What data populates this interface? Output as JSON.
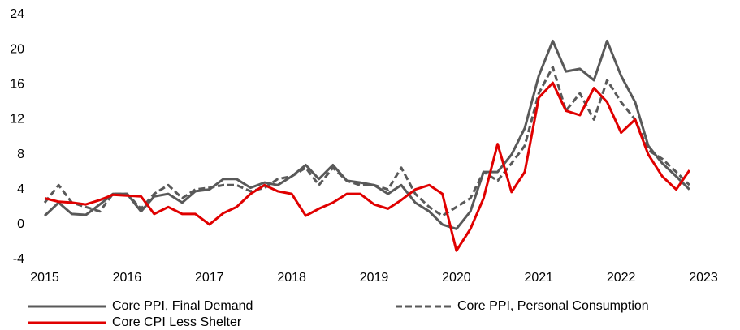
{
  "chart_data": {
    "type": "line",
    "x": [
      2015,
      2015.17,
      2015.33,
      2015.5,
      2015.67,
      2015.83,
      2016,
      2016.17,
      2016.33,
      2016.5,
      2016.67,
      2016.83,
      2017,
      2017.17,
      2017.33,
      2017.5,
      2017.67,
      2017.83,
      2018,
      2018.17,
      2018.33,
      2018.5,
      2018.67,
      2018.83,
      2019,
      2019.17,
      2019.33,
      2019.5,
      2019.67,
      2019.83,
      2020,
      2020.17,
      2020.33,
      2020.5,
      2020.67,
      2020.83,
      2021,
      2021.17,
      2021.33,
      2021.5,
      2021.67,
      2021.83,
      2022,
      2022.17,
      2022.33,
      2022.5,
      2022.67,
      2022.83
    ],
    "series": [
      {
        "name": "Core PPI, Final Demand",
        "color": "#595959",
        "dash": false,
        "values": [
          1,
          2.5,
          1.2,
          1.1,
          2.3,
          3.5,
          3.5,
          1.5,
          3.2,
          3.5,
          2.5,
          3.8,
          4,
          5.2,
          5.2,
          4.2,
          4.8,
          4.5,
          5.5,
          6.8,
          5.2,
          6.8,
          5,
          4.8,
          4.5,
          3.5,
          4.5,
          2.5,
          1.5,
          0,
          -0.5,
          1.5,
          6,
          6,
          8,
          11,
          17,
          21,
          17.5,
          17.8,
          16.5,
          21,
          17,
          14,
          9,
          7,
          5.5,
          4
        ]
      },
      {
        "name": "Core PPI, Personal Consumption",
        "color": "#595959",
        "dash": true,
        "values": [
          2.5,
          4.5,
          2.5,
          2,
          1.5,
          3.5,
          3.5,
          1.8,
          3.5,
          4.5,
          3,
          4,
          4.2,
          4.5,
          4.5,
          3.8,
          4.2,
          5.2,
          5.5,
          6.5,
          4.5,
          6.5,
          5,
          4.5,
          4.5,
          4,
          6.5,
          3.5,
          2,
          1,
          2,
          3,
          6,
          5,
          7,
          9,
          15,
          18,
          13,
          15,
          12,
          16.5,
          14,
          12,
          8.5,
          7.5,
          6,
          4.5
        ]
      },
      {
        "name": "Core CPI Less Shelter",
        "color": "#e00000",
        "dash": false,
        "values": [
          3,
          2.6,
          2.5,
          2.3,
          2.8,
          3.4,
          3.3,
          3.2,
          1.2,
          2,
          1.2,
          1.2,
          0,
          1.3,
          2,
          3.5,
          4.5,
          3.8,
          3.5,
          1,
          1.8,
          2.5,
          3.5,
          3.5,
          2.3,
          1.8,
          2.8,
          4,
          4.5,
          3.5,
          -3,
          -0.5,
          3,
          9.2,
          3.7,
          6,
          14.5,
          16.2,
          13,
          12.5,
          15.6,
          14,
          10.5,
          12,
          8,
          5.5,
          4,
          6.2
        ]
      }
    ],
    "xlim": [
      2015,
      2023
    ],
    "xticks": [
      2015,
      2016,
      2017,
      2018,
      2019,
      2020,
      2021,
      2022,
      2023
    ],
    "ylim": [
      -4,
      24
    ],
    "yticks": [
      -4,
      0,
      4,
      8,
      12,
      16,
      20,
      24
    ],
    "grid": false
  }
}
